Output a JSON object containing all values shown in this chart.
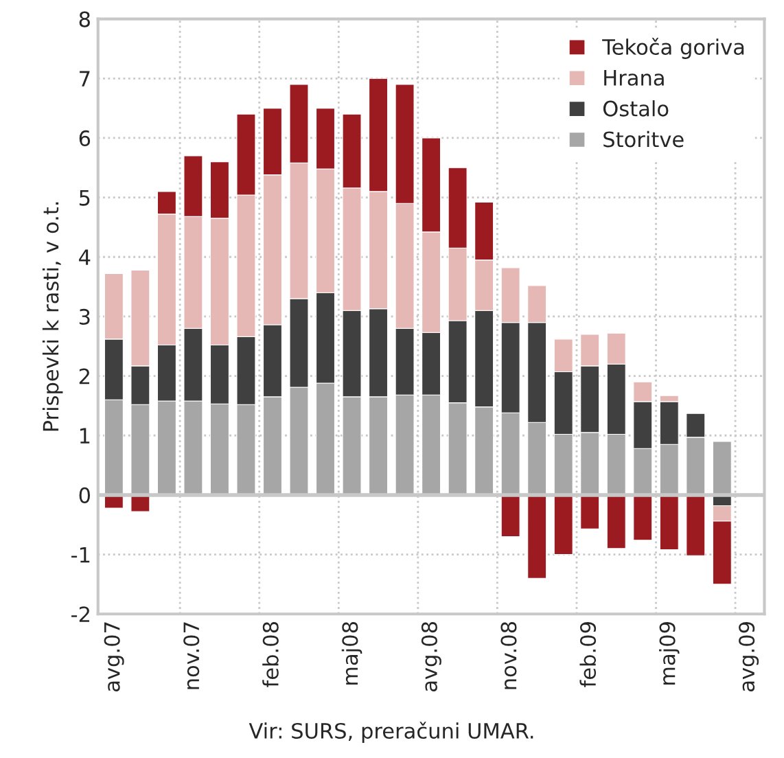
{
  "chart_data": {
    "type": "bar",
    "stacked": true,
    "ylabel": "Prispevki k rasti, v o.t.",
    "annotations": [
      "Vir: SURS, preračuni UMAR."
    ],
    "categories": [
      "avg.07",
      null,
      null,
      "nov.07",
      null,
      null,
      "feb.08",
      null,
      null,
      "maj08",
      null,
      null,
      "avg.08",
      null,
      null,
      "nov.08",
      null,
      null,
      "feb.09",
      null,
      null,
      "maj09",
      null,
      null,
      "avg.09"
    ],
    "series": [
      {
        "name": "Storitve",
        "color": "#a6a6a6",
        "values": [
          1.6,
          1.52,
          1.58,
          1.58,
          1.53,
          1.52,
          1.65,
          1.81,
          1.88,
          1.65,
          1.65,
          1.68,
          1.68,
          1.55,
          1.48,
          1.38,
          1.22,
          1.02,
          1.05,
          1.02,
          0.78,
          0.85,
          0.97,
          0.9,
          null
        ]
      },
      {
        "name": "Ostalo",
        "color": "#404040",
        "values": [
          1.02,
          0.65,
          0.94,
          1.22,
          0.99,
          1.14,
          1.21,
          1.49,
          1.52,
          1.45,
          1.48,
          1.12,
          1.05,
          1.38,
          1.62,
          1.52,
          1.68,
          1.05,
          1.12,
          1.18,
          0.79,
          0.72,
          0.4,
          -0.18,
          null
        ]
      },
      {
        "name": "Hrana",
        "color": "#e6b8b5",
        "values": [
          1.1,
          1.61,
          2.2,
          1.88,
          2.13,
          2.38,
          2.52,
          2.28,
          2.08,
          2.06,
          1.97,
          2.1,
          1.69,
          1.22,
          0.85,
          0.92,
          0.62,
          0.55,
          0.53,
          0.52,
          0.33,
          0.1,
          null,
          -0.26,
          null
        ]
      },
      {
        "name": "Tekoča goriva",
        "color": "#9b1b20",
        "values": [
          -0.22,
          -0.28,
          0.38,
          1.02,
          0.95,
          1.36,
          1.12,
          1.32,
          1.02,
          1.24,
          1.9,
          2.0,
          1.58,
          1.35,
          0.97,
          -0.7,
          -1.4,
          -1.0,
          -0.57,
          -0.9,
          -0.76,
          -0.92,
          -1.02,
          -1.06,
          null
        ]
      }
    ],
    "ylim": [
      -2,
      8
    ],
    "yticks": [
      -2,
      -1,
      0,
      1,
      2,
      3,
      4,
      5,
      6,
      7,
      8
    ],
    "grid": true,
    "legend": "top right"
  }
}
